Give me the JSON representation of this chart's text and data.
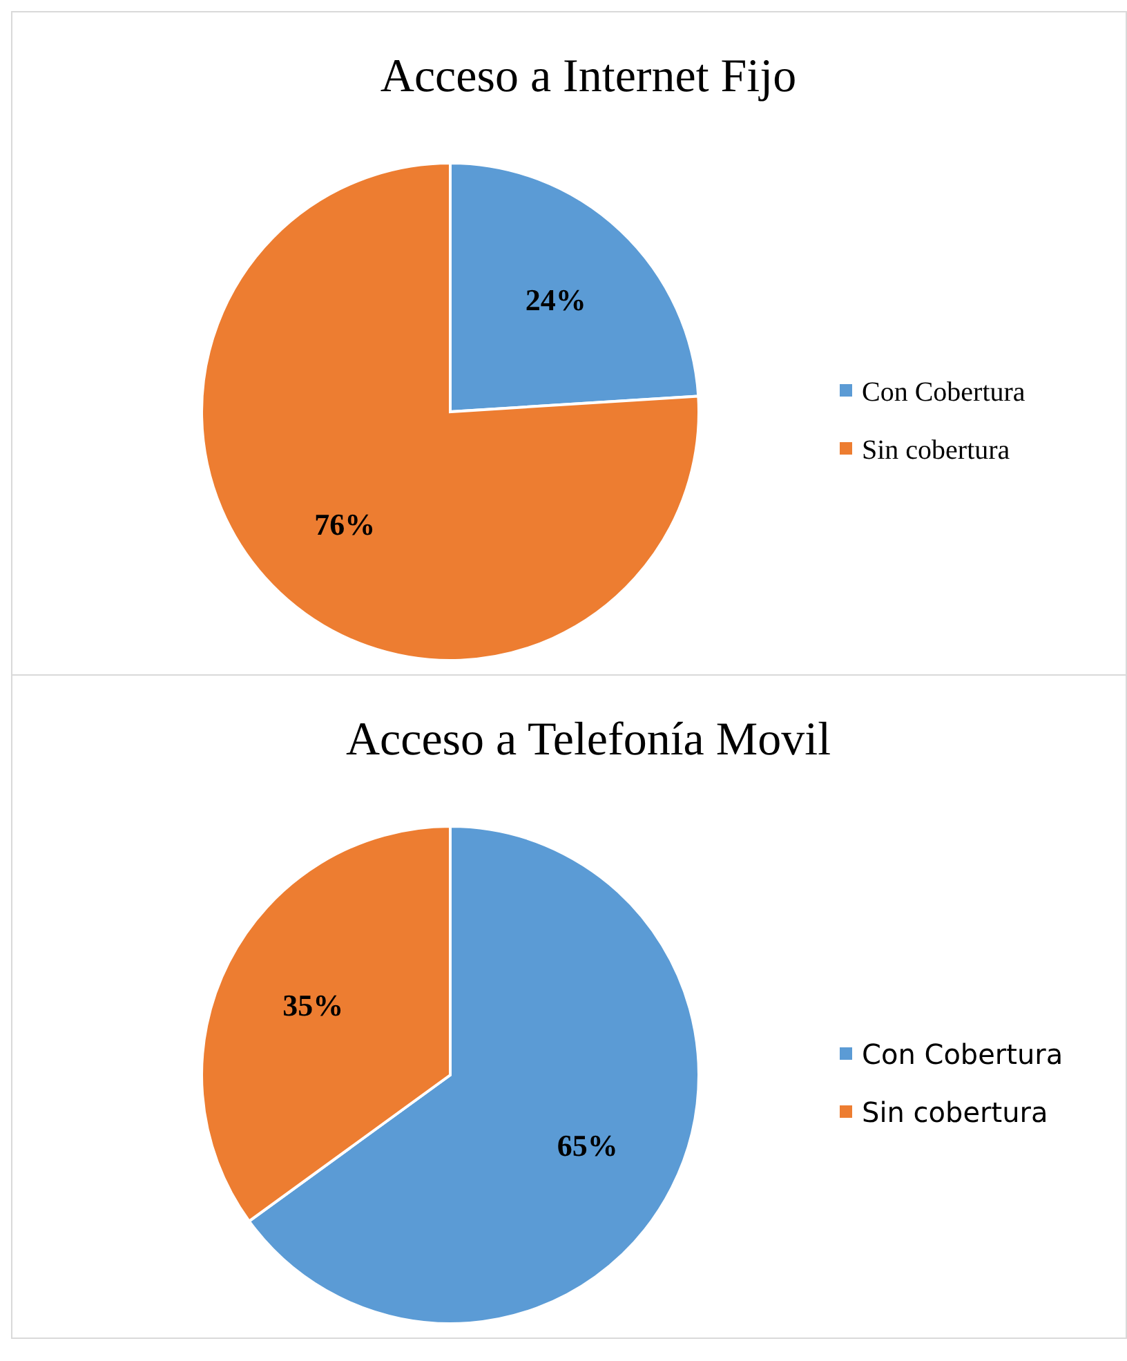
{
  "chart_data": [
    {
      "type": "pie",
      "title": "Acceso a Internet Fijo",
      "categories": [
        "Con Cobertura",
        "Sin cobertura"
      ],
      "values": [
        24,
        76
      ],
      "value_labels": [
        "24%",
        "76%"
      ],
      "colors": [
        "#5b9bd5",
        "#ed7d31"
      ],
      "legend": "right"
    },
    {
      "type": "pie",
      "title": "Acceso a Telefonía Movil",
      "categories": [
        "Con Cobertura",
        "Sin cobertura"
      ],
      "values": [
        65,
        35
      ],
      "value_labels": [
        "65%",
        "35%"
      ],
      "colors": [
        "#5b9bd5",
        "#ed7d31"
      ],
      "legend": "right"
    }
  ]
}
